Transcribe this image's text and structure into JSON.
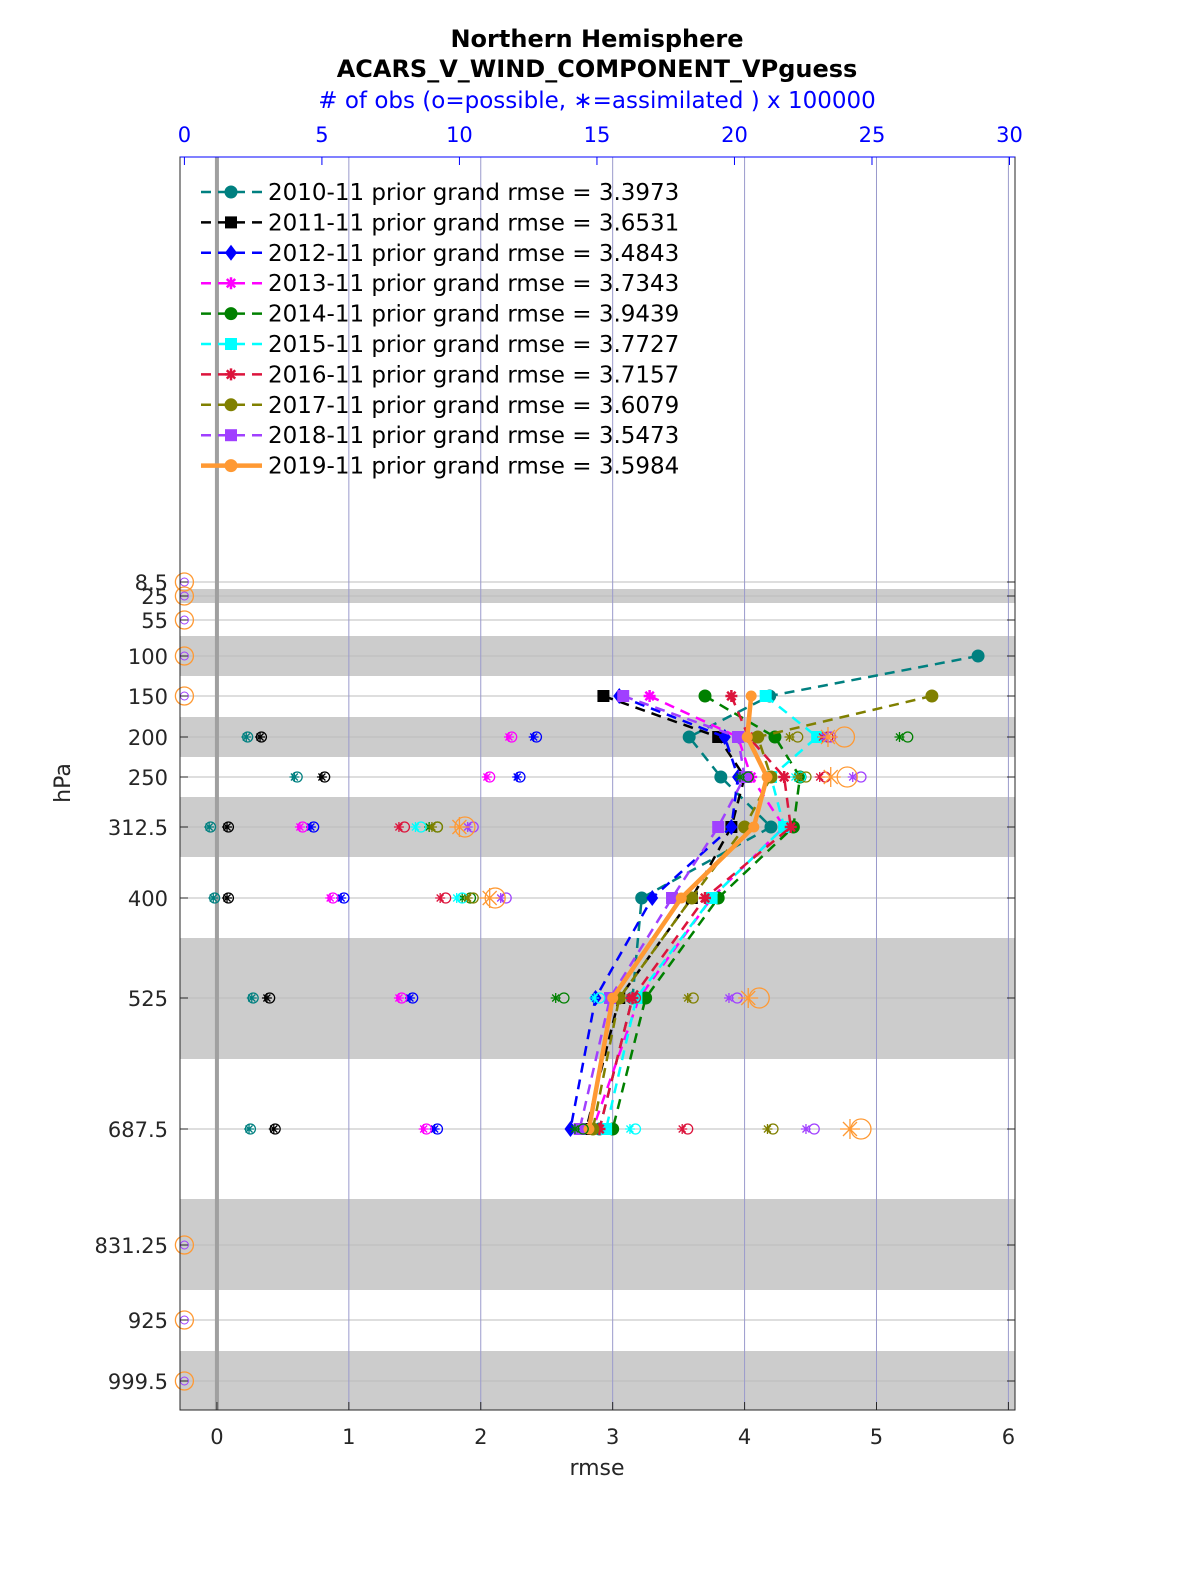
{
  "chart_data": {
    "type": "line",
    "title": "Northern Hemisphere",
    "subtitle": "ACARS_V_WIND_COMPONENT_VPguess",
    "top_axis_label": "# of obs (o=possible, ∗=assimilated ) x 100000",
    "xlabel": "rmse",
    "ylabel": "hPa",
    "xlim": [
      -0.28,
      6.05
    ],
    "x_ticks": [
      "0",
      "1",
      "2",
      "3",
      "4",
      "5",
      "6"
    ],
    "top_xlim": [
      -0.16,
      30.2
    ],
    "top_ticks": [
      "0",
      "5",
      "10",
      "15",
      "20",
      "25",
      "30"
    ],
    "y_tick_labels": [
      "8.5",
      "25",
      "55",
      "100",
      "150",
      "200",
      "250",
      "312.5",
      "400",
      "525",
      "687.5",
      "831.25",
      "925",
      "999.5"
    ],
    "grid": true,
    "legend_location": "top-left",
    "levels": [
      150,
      200,
      250,
      312.5,
      400,
      525,
      687.5
    ],
    "series": [
      {
        "name": "2010-11 prior grand rmse = 3.3973",
        "color": "#008080",
        "marker": "circle",
        "rmse": [
          4.19,
          3.58,
          3.82,
          4.2,
          3.22,
          3.15,
          2.9
        ],
        "obs_possible": [
          0,
          2.3,
          4.1,
          0.95,
          1.1,
          2.5,
          2.4
        ],
        "obs_assimilated": [
          0,
          2.25,
          4.0,
          0.9,
          1.05,
          2.45,
          2.35
        ],
        "extra_point": {
          "level": 100,
          "rmse": 5.77
        }
      },
      {
        "name": "2011-11 prior grand rmse = 3.6531",
        "color": "#000000",
        "marker": "square",
        "rmse": [
          2.93,
          3.8,
          4.0,
          3.9,
          3.6,
          3.05,
          2.8
        ],
        "obs_possible": [
          0,
          2.8,
          5.1,
          1.6,
          1.6,
          3.1,
          3.3
        ],
        "obs_assimilated": [
          0,
          2.75,
          5.0,
          1.55,
          1.55,
          3.0,
          3.25
        ]
      },
      {
        "name": "2012-11 prior grand rmse = 3.4843",
        "color": "#0000ff",
        "marker": "diamond",
        "rmse": [
          3.05,
          3.85,
          3.95,
          3.9,
          3.3,
          2.87,
          2.68
        ],
        "obs_possible": [
          0,
          12.8,
          12.2,
          4.7,
          5.8,
          8.3,
          9.2
        ],
        "obs_assimilated": [
          0,
          12.7,
          12.1,
          4.6,
          5.7,
          8.2,
          9.1
        ]
      },
      {
        "name": "2013-11 prior grand rmse = 3.7343",
        "color": "#ff00ff",
        "marker": "star",
        "rmse": [
          3.28,
          3.95,
          4.05,
          4.3,
          3.75,
          3.2,
          2.85
        ],
        "obs_possible": [
          0,
          11.9,
          11.1,
          4.3,
          5.4,
          7.9,
          8.8
        ],
        "obs_assimilated": [
          0,
          11.8,
          11.0,
          4.2,
          5.3,
          7.8,
          8.7
        ]
      },
      {
        "name": "2014-11 prior grand rmse = 3.9439",
        "color": "#008000",
        "marker": "hexagram",
        "rmse": [
          3.7,
          4.23,
          4.42,
          4.37,
          3.8,
          3.25,
          3.0
        ],
        "obs_possible": [
          0,
          26.3,
          20.5,
          9.2,
          10.4,
          13.8,
          14.5
        ],
        "obs_assimilated": [
          0,
          26.0,
          20.2,
          8.9,
          10.1,
          13.5,
          14.2
        ]
      },
      {
        "name": "2015-11 prior grand rmse = 3.7727",
        "color": "#00ffff",
        "marker": "square",
        "rmse": [
          4.16,
          4.55,
          4.2,
          4.3,
          3.75,
          3.18,
          2.95
        ],
        "obs_possible": [
          0,
          23.2,
          22.4,
          8.6,
          10.1,
          15.1,
          16.4
        ],
        "obs_assimilated": [
          0,
          23.0,
          22.2,
          8.4,
          9.9,
          14.9,
          16.2
        ]
      },
      {
        "name": "2016-11 prior grand rmse = 3.7157",
        "color": "#dc143c",
        "marker": "asterisk",
        "rmse": [
          3.9,
          4.03,
          4.3,
          4.35,
          3.7,
          3.15,
          2.9
        ],
        "obs_possible": [
          0,
          23.4,
          23.3,
          8.0,
          9.5,
          16.4,
          18.3
        ],
        "obs_assimilated": [
          0,
          23.2,
          23.1,
          7.8,
          9.3,
          16.2,
          18.1
        ]
      },
      {
        "name": "2017-11 prior grand rmse = 3.6079",
        "color": "#808000",
        "marker": "circle",
        "rmse": [
          5.42,
          4.1,
          4.2,
          4.0,
          3.6,
          3.05,
          2.85
        ],
        "obs_possible": [
          0,
          22.3,
          22.6,
          9.2,
          10.5,
          18.5,
          21.4
        ],
        "obs_assimilated": [
          0,
          22.0,
          22.3,
          9.0,
          10.3,
          18.3,
          21.2
        ]
      },
      {
        "name": "2018-11 prior grand rmse = 3.5473",
        "color": "#a040ff",
        "marker": "square",
        "rmse": [
          3.08,
          3.95,
          4.0,
          3.8,
          3.45,
          2.98,
          2.75
        ],
        "obs_possible": [
          0,
          23.5,
          24.6,
          10.5,
          11.7,
          20.1,
          22.9
        ],
        "obs_assimilated": [
          0,
          23.3,
          24.3,
          10.3,
          11.5,
          19.8,
          22.6
        ]
      },
      {
        "name": "2019-11 prior grand rmse = 3.5984",
        "color": "#ff9933",
        "marker": "circle",
        "rmse": [
          4.05,
          4.02,
          4.17,
          4.07,
          3.52,
          3.0,
          2.82
        ],
        "obs_possible": [
          0,
          24.0,
          24.1,
          10.2,
          11.3,
          20.9,
          24.6
        ],
        "obs_assimilated": [
          0,
          23.4,
          23.5,
          10.0,
          11.1,
          20.5,
          24.2
        ]
      }
    ]
  }
}
